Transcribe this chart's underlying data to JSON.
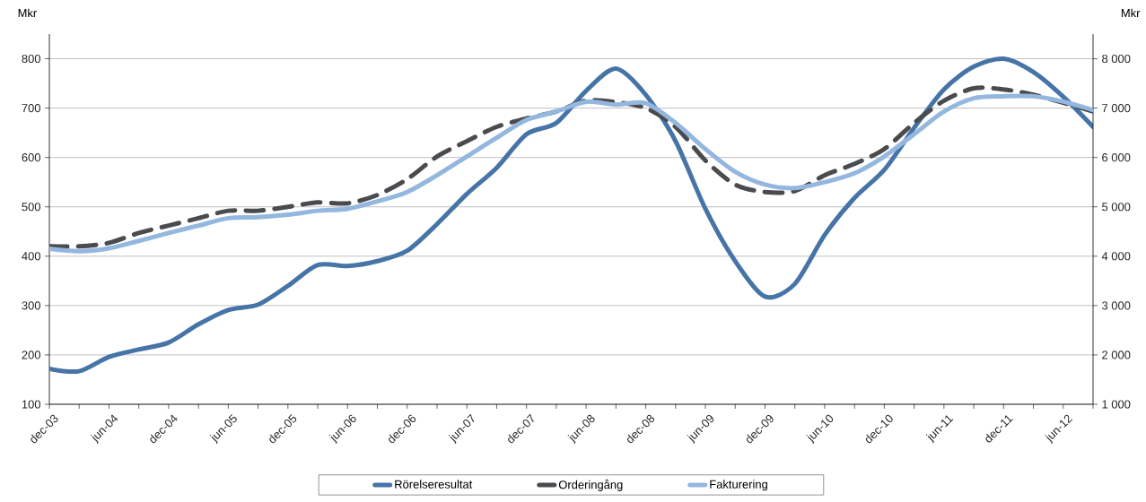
{
  "chart_data": {
    "type": "line",
    "ylabel": "Mkr",
    "y2label": "Mkr",
    "categories": [
      "dec-03",
      null,
      "jun-04",
      null,
      "dec-04",
      null,
      "jun-05",
      null,
      "dec-05",
      null,
      "jun-06",
      null,
      "dec-06",
      null,
      "jun-07",
      null,
      "dec-07",
      null,
      "jun-08",
      null,
      "dec-08",
      null,
      "jun-09",
      null,
      "dec-09",
      null,
      "jun-10",
      null,
      "dec-10",
      null,
      "jun-11",
      null,
      "dec-11",
      null,
      "jun-12",
      null
    ],
    "series": [
      {
        "name": "Rörelseresultat",
        "color": "#4674a6",
        "line_style": "solid",
        "values": [
          172,
          167,
          196,
          211,
          225,
          262,
          291,
          302,
          340,
          382,
          380,
          390,
          411,
          465,
          526,
          579,
          647,
          670,
          735,
          780,
          727,
          633,
          496,
          390,
          318,
          344,
          443,
          518,
          575,
          660,
          738,
          784,
          800,
          773,
          723,
          662
        ]
      },
      {
        "name": "Orderingång",
        "color": "#4a4b4e",
        "axis": "y2",
        "line_style": "dashed",
        "values": [
          4200,
          4200,
          4270,
          4470,
          4620,
          4770,
          4920,
          4920,
          5000,
          5090,
          5070,
          5240,
          5560,
          6020,
          6330,
          6620,
          6790,
          6930,
          7150,
          7120,
          7000,
          6620,
          5940,
          5450,
          5300,
          5320,
          5640,
          5870,
          6170,
          6700,
          7150,
          7400,
          7380,
          7270,
          7110,
          6930
        ]
      },
      {
        "name": "Fakturering",
        "color": "#93b7de",
        "axis": "y2",
        "line_style": "solid",
        "values": [
          4150,
          4100,
          4160,
          4310,
          4470,
          4620,
          4770,
          4790,
          4840,
          4920,
          4960,
          5110,
          5300,
          5640,
          6020,
          6400,
          6760,
          6930,
          7130,
          7070,
          7100,
          6700,
          6170,
          5710,
          5450,
          5380,
          5500,
          5680,
          6020,
          6470,
          6930,
          7200,
          7240,
          7240,
          7130,
          6960
        ]
      }
    ],
    "ylim": [
      100,
      850
    ],
    "yticks": [
      100,
      200,
      300,
      400,
      500,
      600,
      700,
      800
    ],
    "y2lim": [
      1000,
      8500
    ],
    "y2ticks": [
      {
        "value": 1000,
        "label": "1 000"
      },
      {
        "value": 2000,
        "label": "2 000"
      },
      {
        "value": 3000,
        "label": "3 000"
      },
      {
        "value": 4000,
        "label": "4 000"
      },
      {
        "value": 5000,
        "label": "5 000"
      },
      {
        "value": 6000,
        "label": "6 000"
      },
      {
        "value": 7000,
        "label": "7 000"
      },
      {
        "value": 8000,
        "label": "8 000"
      }
    ],
    "grid": "y",
    "legend": "bottom",
    "marker": "none"
  }
}
